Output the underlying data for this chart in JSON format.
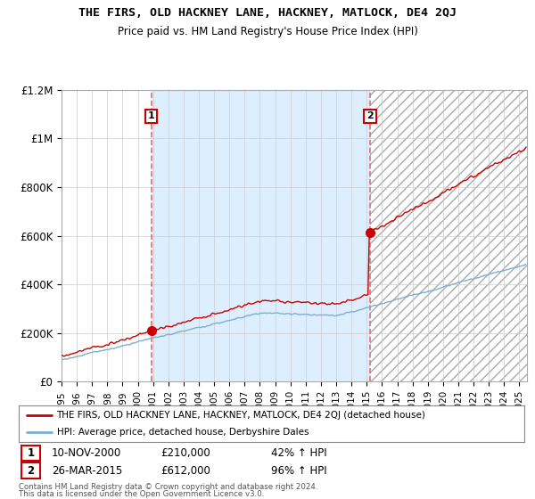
{
  "title": "THE FIRS, OLD HACKNEY LANE, HACKNEY, MATLOCK, DE4 2QJ",
  "subtitle": "Price paid vs. HM Land Registry's House Price Index (HPI)",
  "sale1_date": "10-NOV-2000",
  "sale1_price": 210000,
  "sale1_hpi": "42%",
  "sale2_date": "26-MAR-2015",
  "sale2_price": 612000,
  "sale2_hpi": "96%",
  "legend_property": "THE FIRS, OLD HACKNEY LANE, HACKNEY, MATLOCK, DE4 2QJ (detached house)",
  "legend_hpi": "HPI: Average price, detached house, Derbyshire Dales",
  "footnote1": "Contains HM Land Registry data © Crown copyright and database right 2024.",
  "footnote2": "This data is licensed under the Open Government Licence v3.0.",
  "property_color": "#cc0000",
  "hpi_color": "#7bafd4",
  "vline_color": "#e07070",
  "shade_color": "#ddeeff",
  "box_color": "#cc0000",
  "grid_color": "#cccccc",
  "ylim": [
    0,
    1200000
  ],
  "ylabel_ticks": [
    0,
    200000,
    400000,
    600000,
    800000,
    1000000,
    1200000
  ],
  "ylabel_labels": [
    "£0",
    "£200K",
    "£400K",
    "£600K",
    "£800K",
    "£1M",
    "£1.2M"
  ],
  "year_sale1": 2000.875,
  "year_sale2": 2015.208,
  "xlim_left": 1995.0,
  "xlim_right": 2025.5
}
